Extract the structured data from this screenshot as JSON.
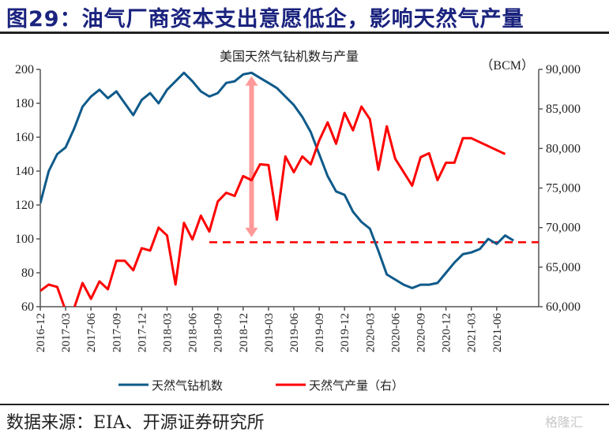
{
  "header": {
    "figure_title": "图29：油气厂商资本支出意愿低企，影响天然气产量"
  },
  "footer": {
    "source": "数据来源：EIA、开源证券研究所",
    "watermark": "格隆汇"
  },
  "colors": {
    "title": "#1a237e",
    "rig_series": "#0e5a8a",
    "production_series": "#ff0000",
    "arrow": "#ff9a9a",
    "axis": "#555555"
  },
  "chart_data": {
    "type": "line",
    "title": "美国天然气钻机数与产量",
    "right_unit_label": "（BCM）",
    "x_tick_labels": [
      "2016-12",
      "2017-03",
      "2017-06",
      "2017-09",
      "2017-12",
      "2018-03",
      "2018-06",
      "2018-09",
      "2018-12",
      "2019-03",
      "2019-06",
      "2019-09",
      "2019-12",
      "2020-03",
      "2020-06",
      "2020-09",
      "2020-12",
      "2021-03",
      "2021-06"
    ],
    "x_start": "2016-12",
    "x_step": "monthly",
    "left_axis": {
      "ylim": [
        60,
        200
      ],
      "ticks": [
        60,
        80,
        100,
        120,
        140,
        160,
        180,
        200
      ],
      "tick_labels": [
        "60",
        "80",
        "100",
        "120",
        "140",
        "160",
        "180",
        "200"
      ]
    },
    "right_axis": {
      "ylim": [
        60000,
        90000
      ],
      "ticks": [
        60000,
        65000,
        70000,
        75000,
        80000,
        85000,
        90000
      ],
      "tick_labels": [
        "60,000",
        "65,000",
        "70,000",
        "75,000",
        "80,000",
        "85,000",
        "90,000"
      ]
    },
    "series": [
      {
        "name": "天然气钻机数",
        "axis": "left",
        "x_index": [
          0,
          1,
          2,
          3,
          4,
          5,
          6,
          7,
          8,
          9,
          10,
          11,
          12,
          13,
          14,
          15,
          16,
          17,
          18,
          19,
          20,
          21,
          22,
          23,
          24,
          25,
          26,
          27,
          28,
          29,
          30,
          31,
          32,
          33,
          34,
          35,
          36,
          37,
          38,
          39,
          40,
          41,
          42,
          43,
          44,
          45,
          46,
          47,
          48,
          49,
          50,
          51,
          52,
          53,
          54,
          55,
          56
        ],
        "values": [
          121,
          140,
          150,
          154,
          165,
          178,
          184,
          188,
          183,
          187,
          180,
          173,
          182,
          186,
          180,
          188,
          193,
          198,
          193,
          187,
          184,
          186,
          192,
          193,
          197,
          198,
          195,
          192,
          189,
          184,
          179,
          172,
          163,
          150,
          137,
          128,
          126,
          116,
          110,
          106,
          93,
          79,
          76,
          73,
          71,
          73,
          73,
          74,
          80,
          86,
          91,
          92,
          94,
          100,
          97,
          102,
          99
        ]
      },
      {
        "name": "天然气产量（右）",
        "axis": "right",
        "x_index": [
          0,
          1,
          2,
          3,
          4,
          5,
          6,
          7,
          8,
          9,
          10,
          11,
          12,
          13,
          14,
          15,
          16,
          17,
          18,
          19,
          20,
          21,
          22,
          23,
          24,
          25,
          26,
          27,
          28,
          29,
          30,
          31,
          32,
          33,
          34,
          35,
          36,
          37,
          38,
          39,
          40,
          41,
          42,
          43,
          44,
          45,
          46,
          47,
          48,
          49,
          50,
          51,
          55
        ],
        "values": [
          62000,
          62800,
          62500,
          59500,
          59800,
          63000,
          61000,
          63200,
          62200,
          65800,
          65800,
          64600,
          67400,
          67100,
          70000,
          69000,
          62800,
          70600,
          68500,
          71500,
          69500,
          73300,
          74400,
          74000,
          76500,
          76000,
          78000,
          77900,
          71000,
          79000,
          77000,
          79000,
          78000,
          81000,
          83300,
          80600,
          84500,
          82300,
          85300,
          83700,
          77300,
          82800,
          78700,
          77000,
          75300,
          78900,
          79400,
          76000,
          78200,
          78200,
          81300,
          81300,
          79300
        ]
      }
    ],
    "annotations": [
      {
        "type": "double-arrow",
        "x_index": 25,
        "from_left_value": 196,
        "to_left_value": 101
      },
      {
        "type": "horizontal-dashed-line",
        "axis": "left",
        "value": 98,
        "x_index_from": 20,
        "x_index_to": 59
      }
    ],
    "legend": {
      "placement": "bottom",
      "entries": [
        "天然气钻机数",
        "天然气产量（右）"
      ]
    },
    "grid": false
  }
}
